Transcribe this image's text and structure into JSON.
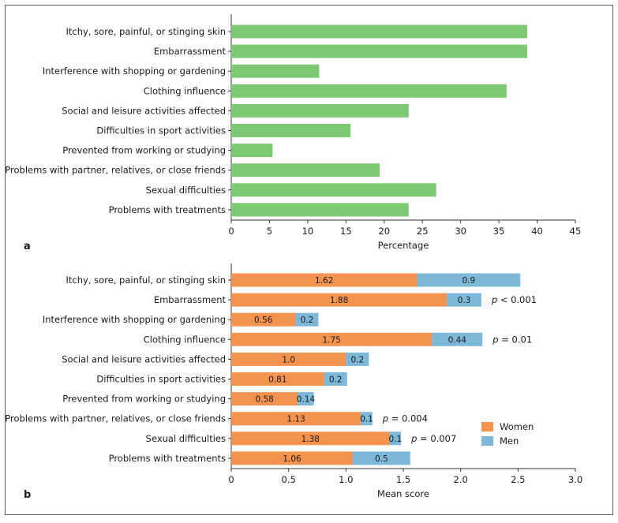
{
  "colors": {
    "green": "#7dc873",
    "women": "#f4924f",
    "men": "#7eb8d9",
    "frame": "#5a5a5a",
    "axis": "#333333"
  },
  "chart_data": [
    {
      "type": "bar",
      "orientation": "horizontal",
      "panel": "a",
      "categories": [
        "Itchy, sore, painful, or stinging skin",
        "Embarrassment",
        "Interference with shopping or gardening",
        "Clothing influence",
        "Social and leisure activities affected",
        "Difficulties in sport activities",
        "Prevented from working or studying",
        "Problems with partner, relatives, or close friends",
        "Sexual difficulties",
        "Problems with treatments"
      ],
      "values": [
        38.7,
        38.7,
        11.5,
        36.0,
        23.2,
        15.6,
        5.4,
        19.4,
        26.8,
        23.2
      ],
      "xlabel": "Percentage",
      "xlim": [
        0,
        45
      ],
      "xticks": [
        "0",
        "5",
        "10",
        "15",
        "20",
        "25",
        "30",
        "35",
        "40",
        "45"
      ],
      "grid": false
    },
    {
      "type": "bar",
      "orientation": "horizontal",
      "stacked": true,
      "panel": "b",
      "categories": [
        "Itchy, sore, painful, or stinging skin",
        "Embarrassment",
        "Interference with shopping or gardening",
        "Clothing influence",
        "Social and leisure activities affected",
        "Difficulties in sport activities",
        "Prevented from working or studying",
        "Problems with partner, relatives, or close friends",
        "Sexual difficulties",
        "Problems with treatments"
      ],
      "series": [
        {
          "name": "Women",
          "values": [
            1.62,
            1.88,
            0.56,
            1.75,
            1.0,
            0.81,
            0.58,
            1.13,
            1.38,
            1.06
          ],
          "labels": [
            "1.62",
            "1.88",
            "0.56",
            "1.75",
            "1.0",
            "0.81",
            "0.58",
            "1.13",
            "1.38",
            "1.06"
          ]
        },
        {
          "name": "Men",
          "values": [
            0.9,
            0.3,
            0.2,
            0.44,
            0.2,
            0.2,
            0.14,
            0.1,
            0.1,
            0.5
          ],
          "labels": [
            "0.9",
            "0.3",
            "0.2",
            "0.44",
            "0.2",
            "0.2",
            "0.14",
            "0.1",
            "0.1",
            "0.5"
          ]
        }
      ],
      "annotations": [
        {
          "category_index": 1,
          "p": "p",
          "rest": " < 0.001"
        },
        {
          "category_index": 3,
          "p": "p",
          "rest": " = 0.01"
        },
        {
          "category_index": 7,
          "p": "p",
          "rest": " = 0.004"
        },
        {
          "category_index": 8,
          "p": "p",
          "rest": " = 0.007"
        }
      ],
      "xlabel": "Mean score",
      "xlim": [
        0,
        3.0
      ],
      "xticks": [
        "0",
        "0.5",
        "1.0",
        "1.5",
        "2.0",
        "2.5",
        "3.0"
      ],
      "legend": {
        "placement": "bottom-right",
        "entries": [
          "Women",
          "Men"
        ]
      },
      "grid": false
    }
  ]
}
